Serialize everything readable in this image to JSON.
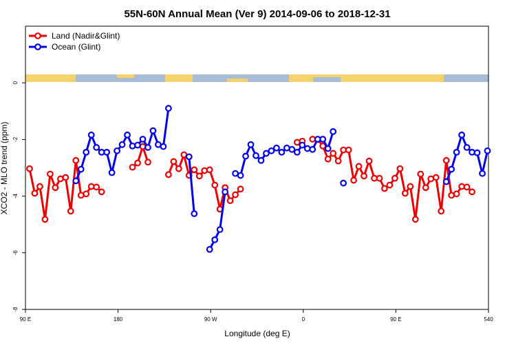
{
  "chart_data": {
    "type": "line",
    "title": "55N-60N Annual Mean (Ver 9)   2014-09-06 to 2018-12-31",
    "x_label": "Longitude (deg E)",
    "y_label": "XCO2 - MLO trend (ppm)",
    "xlim": [
      90,
      540
    ],
    "xticks": [
      {
        "value": 90,
        "label": "90 E"
      },
      180,
      {
        "value": 270,
        "label": "90 W"
      },
      {
        "value": 360,
        "label": "0"
      },
      {
        "value": 450,
        "label": "90 E"
      },
      540
    ],
    "ylim": [
      -8,
      2
    ],
    "yticks": [
      0,
      -2,
      -4,
      -6,
      -8
    ],
    "legend": "top-left",
    "series": [
      {
        "name": "Land (Nadir&Glint)",
        "color": "#ee0000",
        "x": [
          94,
          99,
          104,
          109,
          114,
          119,
          124,
          129,
          134,
          139,
          144,
          149,
          154,
          159,
          164,
          169,
          194,
          199,
          204,
          209,
          214,
          229,
          234,
          239,
          244,
          249,
          254,
          259,
          264,
          269,
          274,
          279,
          284,
          289,
          294,
          299,
          304,
          354,
          359,
          364,
          369,
          374,
          379,
          384,
          389,
          394,
          399,
          404,
          409,
          414,
          419,
          424,
          429,
          434,
          439,
          444,
          449,
          454,
          459,
          464,
          469,
          474,
          479,
          484,
          489,
          494,
          499,
          504,
          509,
          514,
          519,
          524
        ],
        "values": [
          -3.03,
          -3.9,
          -3.66,
          -4.82,
          -3.22,
          -3.7,
          -3.39,
          -3.34,
          -4.53,
          -2.74,
          -3.97,
          -3.92,
          -3.66,
          -3.68,
          -3.85,
          null,
          -2.98,
          -2.83,
          -2.25,
          -2.8,
          null,
          -3.24,
          -2.78,
          -3.03,
          -2.54,
          -3.27,
          -3.07,
          -3.29,
          -3.1,
          -3.07,
          -3.61,
          -4.46,
          -3.7,
          -4.16,
          -3.95,
          -3.75,
          null,
          -2.1,
          -2.06,
          null,
          -1.99,
          -2.0,
          -2.23,
          -2.69,
          -2.49,
          -2.76,
          -2.37,
          -2.37,
          -3.44,
          -2.95,
          -3.29,
          -2.76,
          -3.37,
          -3.37,
          -3.73,
          -3.61,
          -3.37,
          -3.03,
          -3.9,
          -3.66,
          -4.82,
          -3.22,
          -3.7,
          -3.39,
          -3.34,
          -4.53,
          -2.74,
          -3.97,
          -3.92,
          -3.66,
          -3.68,
          -3.85
        ]
      },
      {
        "name": "Ocean (Glint)",
        "color": "#0000ee",
        "x": [
          139,
          144,
          149,
          154,
          159,
          164,
          169,
          174,
          179,
          184,
          189,
          194,
          199,
          204,
          209,
          214,
          219,
          224,
          229,
          234,
          249,
          254,
          259,
          269,
          274,
          279,
          284,
          289,
          294,
          299,
          304,
          309,
          314,
          319,
          324,
          329,
          334,
          339,
          344,
          349,
          354,
          359,
          364,
          369,
          374,
          379,
          384,
          389,
          394,
          399,
          404,
          499,
          504,
          509,
          514,
          519,
          524,
          529,
          534,
          539
        ],
        "values": [
          -3.46,
          -3.05,
          -2.45,
          -1.84,
          -2.28,
          -2.45,
          -2.45,
          -3.17,
          -2.4,
          -2.18,
          -1.84,
          -2.23,
          -2.2,
          -1.99,
          -2.28,
          -1.69,
          -2.18,
          -2.25,
          -0.9,
          null,
          -2.61,
          -4.62,
          null,
          -5.88,
          -5.54,
          -5.18,
          -3.85,
          null,
          -3.2,
          -3.27,
          -2.59,
          -2.18,
          -2.57,
          -2.74,
          -2.49,
          -2.4,
          -2.3,
          -2.45,
          -2.3,
          -2.35,
          -2.45,
          -2.2,
          -2.32,
          -2.35,
          -1.99,
          -1.99,
          -2.32,
          -1.72,
          null,
          -3.54,
          null,
          -3.49,
          -3.05,
          -2.45,
          -1.84,
          -2.28,
          -2.45,
          -2.47,
          -3.2,
          -2.4
        ]
      }
    ]
  }
}
